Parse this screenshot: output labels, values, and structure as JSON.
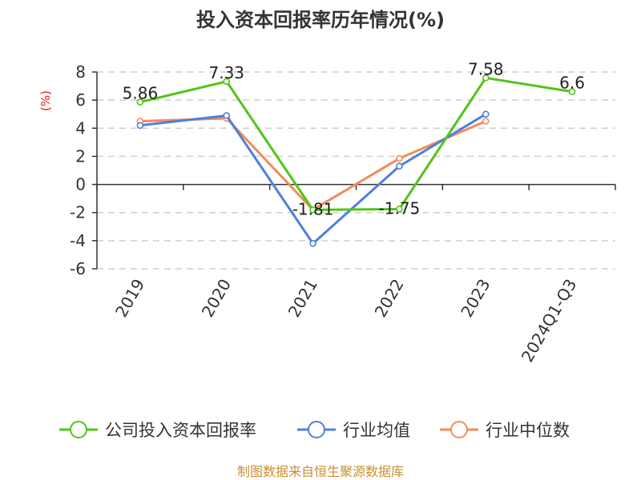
{
  "chart_data": {
    "type": "line",
    "title": "投入资本回报率历年情况(%)",
    "ylabel": "(%)",
    "categories": [
      "2019",
      "2020",
      "2021",
      "2022",
      "2023",
      "2024Q1-Q3"
    ],
    "ylim": [
      -6,
      8
    ],
    "yticks": [
      8,
      6,
      4,
      2,
      0,
      -2,
      -4,
      -6
    ],
    "grid": true,
    "legend_position": "bottom",
    "series": [
      {
        "name": "公司投入资本回报率",
        "values": [
          5.86,
          7.33,
          -1.81,
          -1.75,
          7.58,
          6.6
        ],
        "labels": [
          "5.86",
          "7.33",
          "-1.81",
          "-1.75",
          "7.58",
          "6.6"
        ],
        "color": "#52c41a"
      },
      {
        "name": "行业均值",
        "values": [
          4.2,
          4.9,
          -4.2,
          1.3,
          5.0,
          null
        ],
        "color": "#4f7fdc"
      },
      {
        "name": "行业中位数",
        "values": [
          4.5,
          4.7,
          -1.8,
          1.85,
          4.5,
          null
        ],
        "color": "#f28b59"
      }
    ],
    "source": "制图数据来自恒生聚源数据库",
    "unit_color": "#e02020",
    "source_color": "#c8902e"
  }
}
